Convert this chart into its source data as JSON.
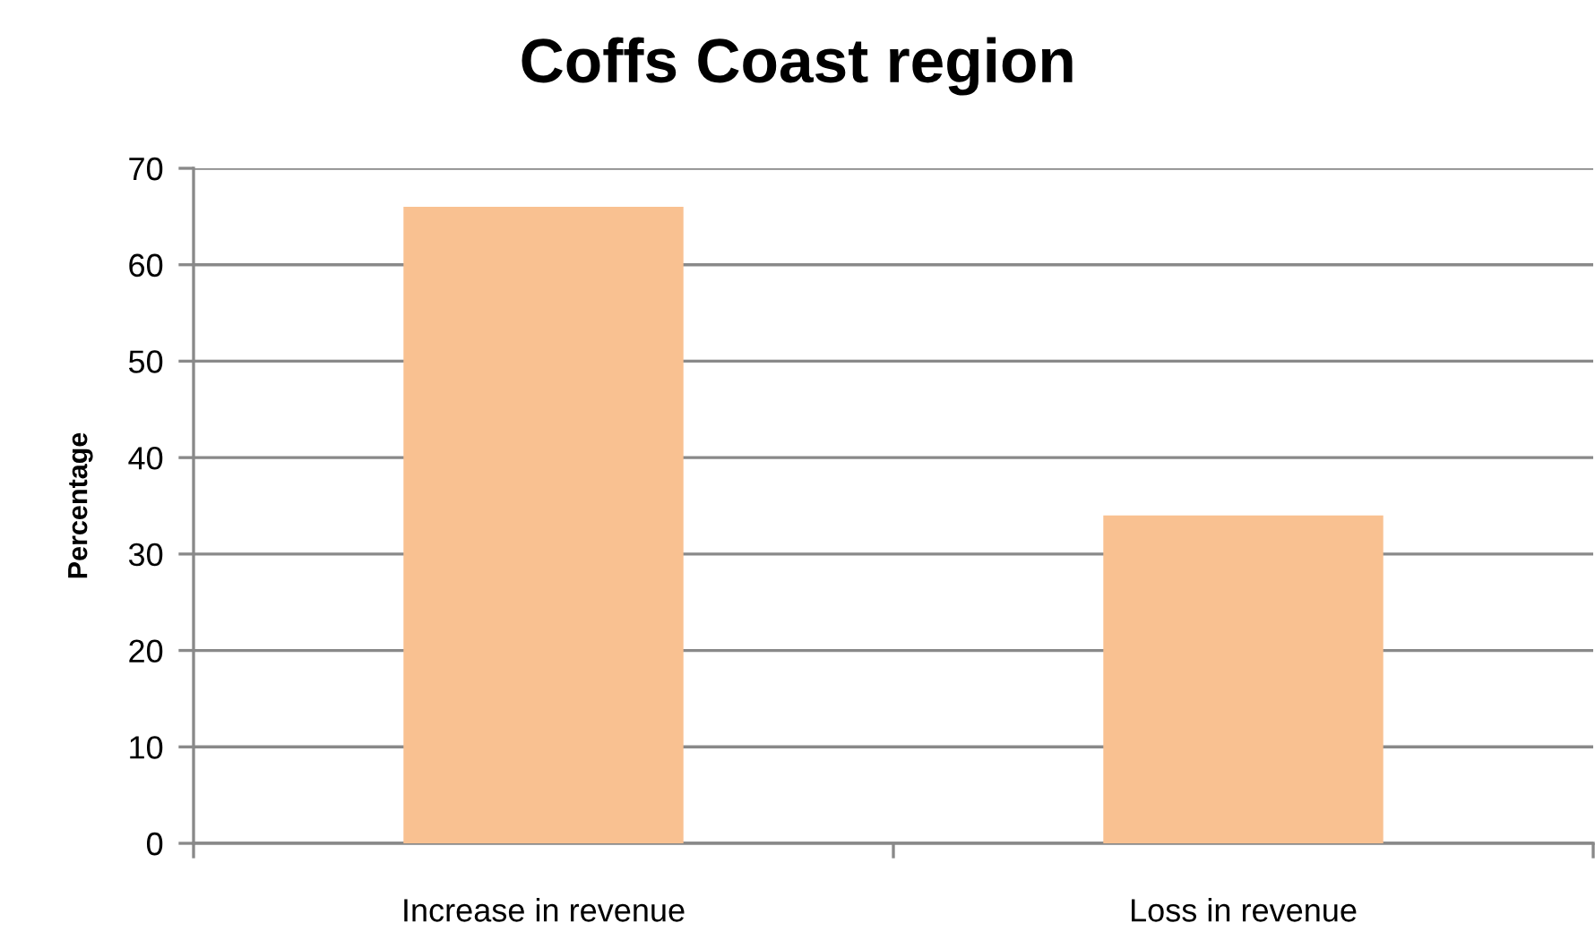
{
  "chart_data": {
    "type": "bar",
    "title": "Coffs Coast region",
    "ylabel": "Percentage",
    "categories": [
      "Increase in revenue",
      "Loss in revenue"
    ],
    "values": [
      66,
      34
    ],
    "color": "#f9c191",
    "ylim": [
      0,
      70
    ],
    "yticks": [
      0,
      10,
      20,
      30,
      40,
      50,
      60,
      70
    ],
    "grid": "y"
  }
}
